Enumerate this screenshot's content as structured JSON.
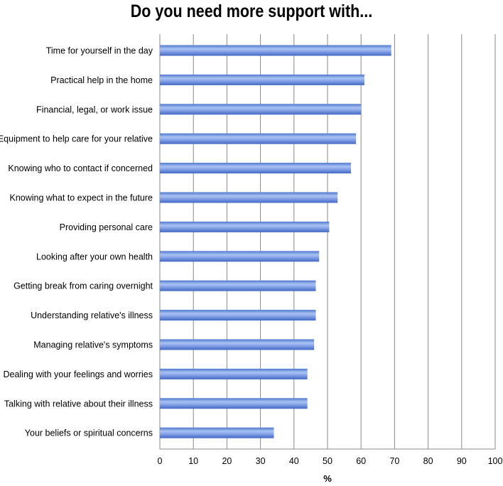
{
  "chart_data": {
    "type": "bar",
    "orientation": "horizontal",
    "title": "Do you need more support with...",
    "xlabel": "%",
    "ylabel": "",
    "xlim": [
      0,
      100
    ],
    "xticks": [
      "0",
      "10",
      "20",
      "30",
      "40",
      "50",
      "60",
      "70",
      "80",
      "90",
      "100"
    ],
    "grid": true,
    "legend": "none",
    "bar_color": "#6f93e0",
    "categories": [
      "Time for yourself in the day",
      "Practical help in the home",
      "Financial, legal, or work issue",
      "Equipment to help care for your relative",
      "Knowing who to contact if concerned",
      "Knowing what to expect in the future",
      "Providing personal care",
      "Looking after your own health",
      "Getting break from caring overnight",
      "Understanding relative's illness",
      "Managing relative's symptoms",
      "Dealing with your feelings and worries",
      "Talking with relative about their illness",
      "Your beliefs or spiritual concerns"
    ],
    "values": [
      69,
      61,
      60,
      58.5,
      57,
      53,
      50.5,
      47.5,
      46.5,
      46.5,
      46,
      44,
      44,
      34
    ]
  }
}
